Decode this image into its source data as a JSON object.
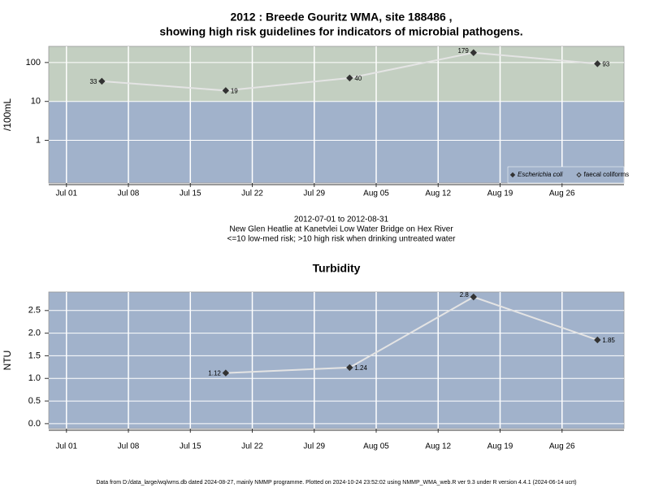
{
  "chart_data": [
    {
      "type": "line",
      "title": [
        "2012 : Breede Gouritz WMA, site 188486 ,",
        "showing high risk guidelines for indicators of microbial pathogens."
      ],
      "ylabel": "/100mL",
      "x": [
        "2012-07-05",
        "2012-07-19",
        "2012-08-02",
        "2012-08-16",
        "2012-08-30"
      ],
      "series": [
        {
          "name": "Escherichia coli",
          "color": "#333333",
          "marker": "filled",
          "values": [
            33,
            19,
            40,
            179,
            93
          ]
        },
        {
          "name": "faecal coliforms",
          "color": "#333333",
          "marker": "open",
          "values": [
            null,
            null,
            null,
            null,
            null
          ]
        }
      ],
      "line_color": "#e4e4e4",
      "log_y": true,
      "ylim": [
        0.08,
        260
      ],
      "yticks": [
        1,
        10,
        100
      ],
      "xlim": [
        "2012-06-29",
        "2012-09-02"
      ],
      "xticks": [
        {
          "value": "2012-07-01",
          "label": "Jul 01"
        },
        {
          "value": "2012-07-08",
          "label": "Jul 08"
        },
        {
          "value": "2012-07-15",
          "label": "Jul 15"
        },
        {
          "value": "2012-07-22",
          "label": "Jul 22"
        },
        {
          "value": "2012-07-29",
          "label": "Jul 29"
        },
        {
          "value": "2012-08-05",
          "label": "Aug 05"
        },
        {
          "value": "2012-08-12",
          "label": "Aug 12"
        },
        {
          "value": "2012-08-19",
          "label": "Aug 19"
        },
        {
          "value": "2012-08-26",
          "label": "Aug 26"
        }
      ],
      "threshold": 10,
      "band_colors": [
        "#a1b2cb",
        "#c3cfc1"
      ],
      "grid": true,
      "legend": "lower right",
      "caption": [
        "2012-07-01 to 2012-08-31",
        "New Glen Heatlie at Kanetvlei Low Water Bridge on Hex River",
        "<=10 low-med risk; >10 high risk when drinking untreated water"
      ]
    },
    {
      "type": "line",
      "title": "Turbidity",
      "ylabel": "NTU",
      "x": [
        "2012-07-19",
        "2012-08-02",
        "2012-08-16",
        "2012-08-30"
      ],
      "values": [
        1.12,
        1.24,
        2.8,
        1.85
      ],
      "color": "#333333",
      "line_color": "#e4e4e4",
      "log_y": false,
      "ylim": [
        -0.11,
        2.91
      ],
      "yticks": [
        {
          "value": 0,
          "label": "0.0"
        },
        0.5,
        {
          "value": 1,
          "label": "1.0"
        },
        1.5,
        {
          "value": 2,
          "label": "2.0"
        },
        2.5
      ],
      "xlim": [
        "2012-06-29",
        "2012-09-02"
      ],
      "xticks": [
        {
          "value": "2012-07-01",
          "label": "Jul 01"
        },
        {
          "value": "2012-07-08",
          "label": "Jul 08"
        },
        {
          "value": "2012-07-15",
          "label": "Jul 15"
        },
        {
          "value": "2012-07-22",
          "label": "Jul 22"
        },
        {
          "value": "2012-07-29",
          "label": "Jul 29"
        },
        {
          "value": "2012-08-05",
          "label": "Aug 05"
        },
        {
          "value": "2012-08-12",
          "label": "Aug 12"
        },
        {
          "value": "2012-08-19",
          "label": "Aug 19"
        },
        {
          "value": "2012-08-26",
          "label": "Aug 26"
        }
      ],
      "background": "#a1b2cb",
      "grid": true
    }
  ],
  "footer": "Data from D:/data_large/wq/wms.db dated 2024-08-27, mainly NMMP programme. Plotted on 2024-10-24 23:52:02 using NMMP_WMA_web.R ver 9.3 under R version 4.4.1 (2024-06-14 ucrt)"
}
